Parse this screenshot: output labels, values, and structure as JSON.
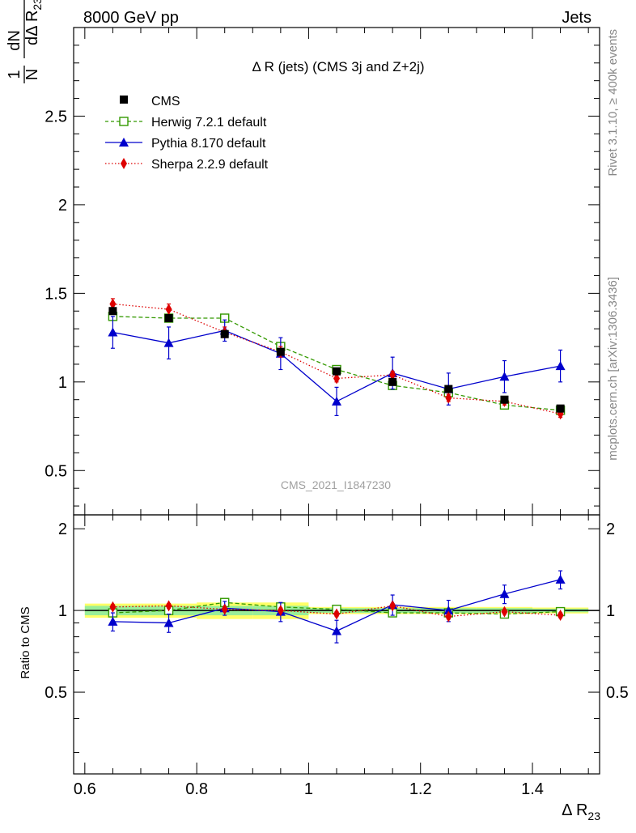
{
  "header": {
    "energy_label": "8000 GeV pp",
    "category_label": "Jets"
  },
  "side_labels": {
    "rivet": "Rivet 3.1.10, ≥ 400k events",
    "mcplots": "mcplots.cern.ch [arXiv:1306.3436]"
  },
  "watermark": "CMS_2021_I1847230",
  "chart_data": [
    {
      "type": "scatter",
      "title": "Δ R (jets) (CMS 3j and Z+2j)",
      "ylabel": "1/N dN/dΔ R23",
      "xlim": [
        0.58,
        1.52
      ],
      "ylim": [
        0.25,
        3.0
      ],
      "x_ticks": [
        0.6,
        0.8,
        1.0,
        1.2,
        1.4
      ],
      "y_ticks": [
        0.5,
        1,
        1.5,
        2,
        2.5
      ],
      "y_tick_labels": [
        "0.5",
        "1",
        "1.5",
        "2",
        "2.5"
      ],
      "legend_position": "top-left",
      "x": [
        0.65,
        0.75,
        0.85,
        0.95,
        1.05,
        1.15,
        1.25,
        1.35,
        1.45
      ],
      "bin_edges": [
        0.6,
        0.7,
        0.8,
        0.9,
        1.0,
        1.1,
        1.2,
        1.3,
        1.4,
        1.5
      ],
      "series": [
        {
          "name": "CMS",
          "color": "#000000",
          "marker": "square-filled",
          "values": [
            1.4,
            1.36,
            1.27,
            1.17,
            1.06,
            1.0,
            0.96,
            0.9,
            0.85
          ]
        },
        {
          "name": "Herwig 7.2.1 default",
          "color": "#339900",
          "marker": "square-open",
          "line": "dashed",
          "values": [
            1.37,
            1.36,
            1.36,
            1.2,
            1.07,
            0.98,
            0.94,
            0.87,
            0.84
          ]
        },
        {
          "name": "Pythia 8.170 default",
          "color": "#0000cc",
          "marker": "triangle",
          "line": "solid",
          "values": [
            1.28,
            1.22,
            1.29,
            1.16,
            0.89,
            1.05,
            0.96,
            1.03,
            1.09
          ],
          "errors": [
            0.09,
            0.09,
            0.06,
            0.09,
            0.08,
            0.09,
            0.09,
            0.09,
            0.09
          ]
        },
        {
          "name": "Sherpa 2.2.9 default",
          "color": "#dd0000",
          "marker": "diamond",
          "line": "dotted",
          "values": [
            1.44,
            1.41,
            1.28,
            1.17,
            1.02,
            1.04,
            0.91,
            0.89,
            0.82
          ],
          "errors": [
            0.03,
            0.03,
            0.03,
            0.03,
            0.02,
            0.02,
            0.02,
            0.02,
            0.02
          ]
        }
      ]
    },
    {
      "type": "scatter",
      "title": "",
      "ylabel": "Ratio to CMS",
      "xlabel": "Δ R23",
      "xlim": [
        0.58,
        1.52
      ],
      "ylim": [
        0.25,
        2.25
      ],
      "y_scale": "log",
      "x_ticks": [
        0.6,
        0.8,
        1.0,
        1.2,
        1.4
      ],
      "x_tick_labels": [
        "0.6",
        "0.8",
        "1",
        "1.2",
        "1.4"
      ],
      "y_ticks": [
        0.5,
        1,
        2
      ],
      "y_tick_labels": [
        "0.5",
        "1",
        "2"
      ],
      "x": [
        0.65,
        0.75,
        0.85,
        0.95,
        1.05,
        1.15,
        1.25,
        1.35,
        1.45
      ],
      "bin_edges": [
        0.6,
        0.7,
        0.8,
        0.9,
        1.0,
        1.1,
        1.2,
        1.3,
        1.4,
        1.5
      ],
      "bands": {
        "inner_color": "#99ee99",
        "outer_color": "#ffff66",
        "inner_halfwidth": [
          0.04,
          0.04,
          0.04,
          0.04,
          0.02,
          0.02,
          0.02,
          0.02,
          0.015
        ],
        "outer_halfwidth": [
          0.06,
          0.06,
          0.07,
          0.07,
          0.03,
          0.03,
          0.03,
          0.03,
          0.025
        ]
      },
      "series": [
        {
          "name": "Herwig 7.2.1 default",
          "color": "#339900",
          "marker": "square-open",
          "line": "dashed",
          "values": [
            0.98,
            1.0,
            1.07,
            1.03,
            1.01,
            0.98,
            0.98,
            0.97,
            0.99
          ]
        },
        {
          "name": "Pythia 8.170 default",
          "color": "#0000cc",
          "marker": "triangle",
          "line": "solid",
          "values": [
            0.91,
            0.9,
            1.02,
            0.99,
            0.84,
            1.05,
            1.0,
            1.15,
            1.3
          ],
          "errors": [
            0.07,
            0.07,
            0.06,
            0.08,
            0.08,
            0.09,
            0.09,
            0.09,
            0.1
          ]
        },
        {
          "name": "Sherpa 2.2.9 default",
          "color": "#dd0000",
          "marker": "diamond",
          "line": "dotted",
          "values": [
            1.03,
            1.04,
            1.01,
            1.0,
            0.97,
            1.04,
            0.95,
            0.99,
            0.96
          ],
          "errors": [
            0.02,
            0.02,
            0.02,
            0.02,
            0.02,
            0.02,
            0.02,
            0.02,
            0.02
          ]
        }
      ]
    }
  ]
}
